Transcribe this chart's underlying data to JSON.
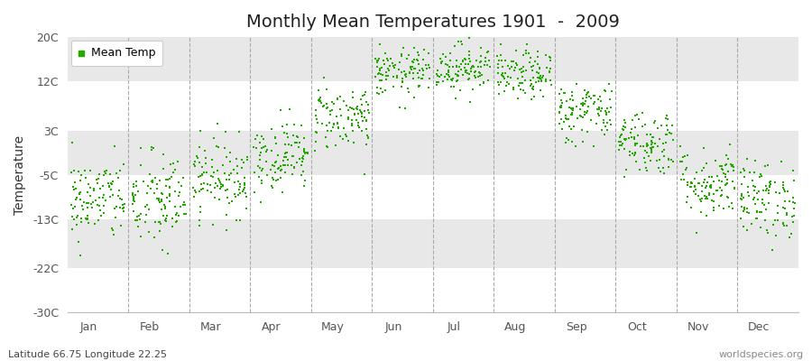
{
  "title": "Monthly Mean Temperatures 1901  -  2009",
  "ylabel": "Temperature",
  "xlabel_bottom_left": "Latitude 66.75 Longitude 22.25",
  "xlabel_bottom_right": "worldspecies.org",
  "legend_label": "Mean Temp",
  "marker_color": "#22AA00",
  "marker_size": 4,
  "fig_bg_color": "#FFFFFF",
  "plot_bg_color": "#F0F0F0",
  "band_colors": [
    "#FFFFFF",
    "#E8E8E8"
  ],
  "yticks": [
    -30,
    -22,
    -13,
    -5,
    3,
    12,
    20
  ],
  "ytick_labels": [
    "-30C",
    "-22C",
    "-13C",
    "-5C",
    "3C",
    "12C",
    "20C"
  ],
  "ylim": [
    -30,
    20
  ],
  "month_names": [
    "Jan",
    "Feb",
    "Mar",
    "Apr",
    "May",
    "Jun",
    "Jul",
    "Aug",
    "Sep",
    "Oct",
    "Nov",
    "Dec"
  ],
  "month_means": [
    -9.5,
    -9.8,
    -5.5,
    -1.5,
    5.5,
    13.5,
    14.5,
    13.0,
    6.5,
    1.0,
    -6.5,
    -9.5
  ],
  "month_stds": [
    3.8,
    4.5,
    3.5,
    3.2,
    3.0,
    2.2,
    2.2,
    2.2,
    2.8,
    3.0,
    3.2,
    3.5
  ],
  "n_years": 109,
  "seed": 42,
  "dashed_line_color": "#AAAAAA",
  "spine_color": "#BBBBBB",
  "tick_color": "#555555",
  "title_fontsize": 14,
  "axis_fontsize": 9,
  "legend_fontsize": 9
}
